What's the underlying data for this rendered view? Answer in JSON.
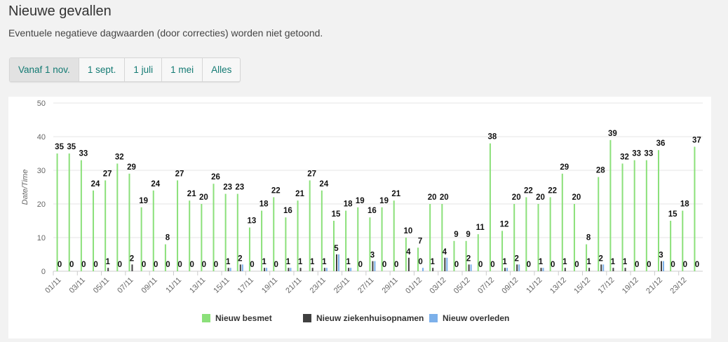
{
  "header": {
    "title": "Nieuwe gevallen",
    "subtitle": "Eventuele negatieve dagwaarden (door correcties) worden niet getoond."
  },
  "range_buttons": [
    {
      "label": "Vanaf 1 nov.",
      "active": true
    },
    {
      "label": "1 sept.",
      "active": false
    },
    {
      "label": "1 juli",
      "active": false
    },
    {
      "label": "1 mei",
      "active": false
    },
    {
      "label": "Alles",
      "active": false
    }
  ],
  "chart_data": {
    "type": "bar",
    "ylabel": "Date/Time",
    "ylim": [
      0,
      50
    ],
    "yticks": [
      0,
      10,
      20,
      30,
      40,
      50
    ],
    "grid": true,
    "legend_position": "bottom",
    "categories": [
      "01/11",
      "02/11",
      "03/11",
      "04/11",
      "05/11",
      "06/11",
      "07/11",
      "08/11",
      "09/11",
      "10/11",
      "11/11",
      "12/11",
      "13/11",
      "14/11",
      "15/11",
      "16/11",
      "17/11",
      "18/11",
      "19/11",
      "20/11",
      "21/11",
      "22/11",
      "23/11",
      "24/11",
      "25/11",
      "26/11",
      "27/11",
      "28/11",
      "29/11",
      "30/11",
      "01/12",
      "02/12",
      "03/12",
      "04/12",
      "05/12",
      "06/12",
      "07/12",
      "08/12",
      "09/12",
      "10/12",
      "11/12",
      "12/12",
      "13/12",
      "14/12",
      "15/12",
      "16/12",
      "17/12",
      "18/12",
      "19/12",
      "20/12",
      "21/12",
      "22/12",
      "23/12",
      "24/12"
    ],
    "xtick_labels": [
      "01/11",
      "03/11",
      "05/11",
      "07/11",
      "09/11",
      "11/11",
      "13/11",
      "15/11",
      "17/11",
      "19/11",
      "21/11",
      "23/11",
      "25/11",
      "27/11",
      "29/11",
      "01/12",
      "03/12",
      "05/12",
      "07/12",
      "09/12",
      "11/12",
      "13/12",
      "15/12",
      "17/12",
      "19/12",
      "21/12",
      "23/12"
    ],
    "series": [
      {
        "name": "Nieuw besmet",
        "color": "#8be07a",
        "values": [
          35,
          35,
          33,
          24,
          27,
          32,
          29,
          19,
          24,
          8,
          27,
          21,
          20,
          26,
          23,
          23,
          13,
          18,
          22,
          16,
          21,
          27,
          24,
          15,
          18,
          19,
          16,
          19,
          21,
          10,
          7,
          20,
          20,
          9,
          9,
          11,
          38,
          12,
          20,
          22,
          20,
          22,
          29,
          20,
          8,
          28,
          39,
          32,
          33,
          33,
          36,
          15,
          18,
          37
        ]
      },
      {
        "name": "Nieuw ziekenhuisopnamen",
        "color": "#404040",
        "values": [
          0,
          0,
          0,
          0,
          1,
          0,
          2,
          0,
          0,
          0,
          0,
          0,
          0,
          0,
          1,
          2,
          0,
          1,
          0,
          1,
          1,
          1,
          1,
          5,
          1,
          0,
          3,
          0,
          0,
          4,
          0,
          1,
          4,
          0,
          2,
          0,
          0,
          1,
          2,
          0,
          1,
          0,
          1,
          0,
          1,
          2,
          1,
          1,
          0,
          0,
          3,
          0,
          0,
          0
        ]
      },
      {
        "name": "Nieuw overleden",
        "color": "#7cb0ea",
        "values": [
          0,
          0,
          0,
          0,
          0,
          0,
          0,
          0,
          0,
          0,
          0,
          0,
          0,
          0,
          1,
          2,
          0,
          1,
          0,
          1,
          0,
          0,
          1,
          5,
          1,
          0,
          3,
          0,
          0,
          0,
          1,
          0,
          4,
          0,
          2,
          0,
          0,
          1,
          2,
          0,
          1,
          0,
          0,
          0,
          0,
          2,
          0,
          0,
          0,
          0,
          3,
          0,
          0,
          0
        ]
      }
    ]
  }
}
